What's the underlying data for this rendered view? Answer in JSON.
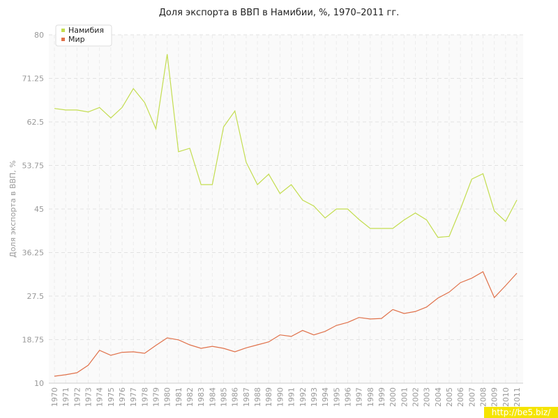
{
  "chart_data": {
    "type": "line",
    "title": "Доля экспорта в ВВП в Намибии, %, 1970–2011 гг.",
    "y_label": "Доля экспорта в ВВП, %",
    "watermark": "http://be5.biz/",
    "categories": [
      "1970",
      "1971",
      "1972",
      "1973",
      "1974",
      "1975",
      "1976",
      "1977",
      "1978",
      "1979",
      "1980",
      "1981",
      "1982",
      "1983",
      "1984",
      "1985",
      "1986",
      "1987",
      "1988",
      "1989",
      "1990",
      "1991",
      "1992",
      "1993",
      "1994",
      "1995",
      "1996",
      "1997",
      "1998",
      "1999",
      "2000",
      "2001",
      "2002",
      "2003",
      "2004",
      "2005",
      "2006",
      "2007",
      "2008",
      "2009",
      "2010",
      "2011"
    ],
    "series": [
      {
        "name": "Намибия",
        "color": "#c3dd4f",
        "values": [
          65.2,
          64.9,
          64.9,
          64.5,
          65.4,
          63.3,
          65.4,
          69.2,
          66.4,
          61.1,
          76.1,
          56.5,
          57.2,
          49.9,
          49.9,
          61.5,
          64.7,
          54.4,
          49.9,
          52.0,
          48.1,
          49.9,
          46.8,
          45.6,
          43.2,
          45.0,
          45.0,
          42.9,
          41.1,
          41.1,
          41.1,
          42.8,
          44.2,
          42.8,
          39.3,
          39.5,
          45.0,
          51.0,
          52.1,
          44.6,
          42.5,
          46.8
        ]
      },
      {
        "name": "Мир",
        "color": "#e0714a",
        "values": [
          11.4,
          11.7,
          12.1,
          13.6,
          16.6,
          15.6,
          16.2,
          16.3,
          16.0,
          17.6,
          19.1,
          18.7,
          17.7,
          17.0,
          17.4,
          17.0,
          16.3,
          17.1,
          17.7,
          18.3,
          19.7,
          19.4,
          20.6,
          19.7,
          20.4,
          21.6,
          22.2,
          23.2,
          22.9,
          23.0,
          24.8,
          24.0,
          24.4,
          25.3,
          27.1,
          28.3,
          30.2,
          31.1,
          32.4,
          27.2,
          29.6,
          32.1
        ]
      }
    ],
    "ylim": [
      10,
      80
    ],
    "yticks": [
      10,
      18.75,
      27.5,
      36.25,
      45,
      53.75,
      62.5,
      71.25,
      80
    ],
    "grid": true,
    "legend": "top-left"
  }
}
